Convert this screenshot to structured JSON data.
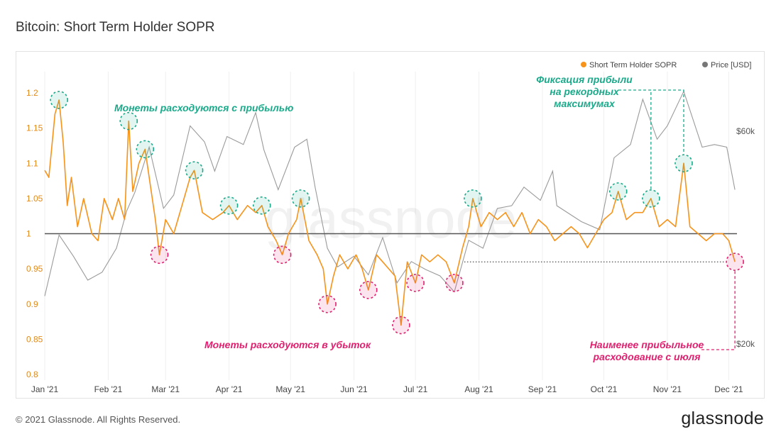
{
  "title": "Bitcoin: Short Term Holder SOPR",
  "footer": "© 2021 Glassnode. All Rights Reserved.",
  "brand": "glassnode",
  "watermark": "glassnode",
  "colors": {
    "sopr": "#f7931a",
    "price": "#9a9a9a",
    "baseline": "#555555",
    "profit": "#1aaa8a",
    "loss": "#e0206e"
  },
  "chart_data": {
    "type": "line",
    "xlabels": [
      "Jan '21",
      "Feb '21",
      "Mar '21",
      "Apr '21",
      "May '21",
      "Jun '21",
      "Jul '21",
      "Aug '21",
      "Sep '21",
      "Oct '21",
      "Nov '21",
      "Dec '21"
    ],
    "x_range": [
      "2021-01-01",
      "2021-12-05"
    ],
    "y_ticks": [
      "1.2",
      "1.15",
      "1.1",
      "1.05",
      "1",
      "0.95",
      "0.9",
      "0.85",
      "0.8"
    ],
    "ylim": [
      0.8,
      1.2
    ],
    "price_ticks": [
      "$60k",
      "$20k"
    ],
    "legend": [
      "Short Term Holder SOPR",
      "Price [USD]"
    ],
    "legend_position": "top-right",
    "baseline": 1.0,
    "series": [
      {
        "name": "Short Term Holder SOPR",
        "axis": "left",
        "points": [
          [
            "2021-01-01",
            1.09
          ],
          [
            "2021-01-03",
            1.08
          ],
          [
            "2021-01-06",
            1.17
          ],
          [
            "2021-01-08",
            1.19
          ],
          [
            "2021-01-10",
            1.13
          ],
          [
            "2021-01-12",
            1.04
          ],
          [
            "2021-01-14",
            1.08
          ],
          [
            "2021-01-17",
            1.01
          ],
          [
            "2021-01-20",
            1.05
          ],
          [
            "2021-01-24",
            1.0
          ],
          [
            "2021-01-27",
            0.99
          ],
          [
            "2021-01-30",
            1.05
          ],
          [
            "2021-02-03",
            1.02
          ],
          [
            "2021-02-06",
            1.05
          ],
          [
            "2021-02-09",
            1.02
          ],
          [
            "2021-02-11",
            1.16
          ],
          [
            "2021-02-13",
            1.06
          ],
          [
            "2021-02-16",
            1.1
          ],
          [
            "2021-02-19",
            1.12
          ],
          [
            "2021-02-22",
            1.06
          ],
          [
            "2021-02-24",
            1.02
          ],
          [
            "2021-02-26",
            0.97
          ],
          [
            "2021-03-01",
            1.02
          ],
          [
            "2021-03-05",
            1.0
          ],
          [
            "2021-03-09",
            1.04
          ],
          [
            "2021-03-13",
            1.08
          ],
          [
            "2021-03-15",
            1.09
          ],
          [
            "2021-03-19",
            1.03
          ],
          [
            "2021-03-24",
            1.02
          ],
          [
            "2021-03-29",
            1.03
          ],
          [
            "2021-04-01",
            1.04
          ],
          [
            "2021-04-05",
            1.02
          ],
          [
            "2021-04-10",
            1.04
          ],
          [
            "2021-04-14",
            1.03
          ],
          [
            "2021-04-17",
            1.04
          ],
          [
            "2021-04-20",
            1.01
          ],
          [
            "2021-04-24",
            0.99
          ],
          [
            "2021-04-27",
            0.97
          ],
          [
            "2021-04-30",
            1.0
          ],
          [
            "2021-05-04",
            1.02
          ],
          [
            "2021-05-06",
            1.05
          ],
          [
            "2021-05-10",
            0.99
          ],
          [
            "2021-05-14",
            0.97
          ],
          [
            "2021-05-17",
            0.95
          ],
          [
            "2021-05-19",
            0.9
          ],
          [
            "2021-05-22",
            0.94
          ],
          [
            "2021-05-25",
            0.97
          ],
          [
            "2021-05-29",
            0.95
          ],
          [
            "2021-06-02",
            0.97
          ],
          [
            "2021-06-05",
            0.95
          ],
          [
            "2021-06-08",
            0.92
          ],
          [
            "2021-06-12",
            0.97
          ],
          [
            "2021-06-15",
            0.96
          ],
          [
            "2021-06-18",
            0.95
          ],
          [
            "2021-06-21",
            0.94
          ],
          [
            "2021-06-24",
            0.87
          ],
          [
            "2021-06-27",
            0.96
          ],
          [
            "2021-07-01",
            0.93
          ],
          [
            "2021-07-04",
            0.97
          ],
          [
            "2021-07-08",
            0.96
          ],
          [
            "2021-07-12",
            0.97
          ],
          [
            "2021-07-16",
            0.96
          ],
          [
            "2021-07-20",
            0.93
          ],
          [
            "2021-07-24",
            0.98
          ],
          [
            "2021-07-27",
            1.01
          ],
          [
            "2021-07-29",
            1.05
          ],
          [
            "2021-08-02",
            1.01
          ],
          [
            "2021-08-06",
            1.03
          ],
          [
            "2021-08-10",
            1.02
          ],
          [
            "2021-08-14",
            1.03
          ],
          [
            "2021-08-18",
            1.01
          ],
          [
            "2021-08-22",
            1.03
          ],
          [
            "2021-08-26",
            1.0
          ],
          [
            "2021-08-30",
            1.02
          ],
          [
            "2021-09-03",
            1.01
          ],
          [
            "2021-09-07",
            0.99
          ],
          [
            "2021-09-11",
            1.0
          ],
          [
            "2021-09-15",
            1.01
          ],
          [
            "2021-09-19",
            1.0
          ],
          [
            "2021-09-23",
            0.98
          ],
          [
            "2021-09-27",
            1.0
          ],
          [
            "2021-10-01",
            1.02
          ],
          [
            "2021-10-05",
            1.03
          ],
          [
            "2021-10-08",
            1.06
          ],
          [
            "2021-10-12",
            1.02
          ],
          [
            "2021-10-16",
            1.03
          ],
          [
            "2021-10-20",
            1.03
          ],
          [
            "2021-10-24",
            1.05
          ],
          [
            "2021-10-28",
            1.01
          ],
          [
            "2021-11-01",
            1.02
          ],
          [
            "2021-11-05",
            1.01
          ],
          [
            "2021-11-09",
            1.1
          ],
          [
            "2021-11-12",
            1.01
          ],
          [
            "2021-11-16",
            1.0
          ],
          [
            "2021-11-20",
            0.99
          ],
          [
            "2021-11-24",
            1.0
          ],
          [
            "2021-11-28",
            1.0
          ],
          [
            "2021-12-01",
            0.99
          ],
          [
            "2021-12-04",
            0.96
          ]
        ]
      },
      {
        "name": "Price [USD]",
        "axis": "right",
        "range": [
          20000,
          60000
        ],
        "points": [
          [
            "2021-01-01",
            29000
          ],
          [
            "2021-01-08",
            40500
          ],
          [
            "2021-01-15",
            36500
          ],
          [
            "2021-01-22",
            32000
          ],
          [
            "2021-01-29",
            33500
          ],
          [
            "2021-02-05",
            38000
          ],
          [
            "2021-02-10",
            45000
          ],
          [
            "2021-02-14",
            48500
          ],
          [
            "2021-02-21",
            57000
          ],
          [
            "2021-02-28",
            45500
          ],
          [
            "2021-03-05",
            48000
          ],
          [
            "2021-03-13",
            61000
          ],
          [
            "2021-03-20",
            58000
          ],
          [
            "2021-03-25",
            52500
          ],
          [
            "2021-03-31",
            59000
          ],
          [
            "2021-04-08",
            57500
          ],
          [
            "2021-04-14",
            63500
          ],
          [
            "2021-04-18",
            56500
          ],
          [
            "2021-04-25",
            49000
          ],
          [
            "2021-05-03",
            57000
          ],
          [
            "2021-05-09",
            58500
          ],
          [
            "2021-05-13",
            49500
          ],
          [
            "2021-05-19",
            38000
          ],
          [
            "2021-05-24",
            34500
          ],
          [
            "2021-06-01",
            36500
          ],
          [
            "2021-06-08",
            33000
          ],
          [
            "2021-06-15",
            40000
          ],
          [
            "2021-06-22",
            31500
          ],
          [
            "2021-06-29",
            35500
          ],
          [
            "2021-07-06",
            34000
          ],
          [
            "2021-07-13",
            32800
          ],
          [
            "2021-07-20",
            29800
          ],
          [
            "2021-07-27",
            39500
          ],
          [
            "2021-08-03",
            38000
          ],
          [
            "2021-08-10",
            45500
          ],
          [
            "2021-08-17",
            46000
          ],
          [
            "2021-08-23",
            49500
          ],
          [
            "2021-08-31",
            47000
          ],
          [
            "2021-09-06",
            52500
          ],
          [
            "2021-09-08",
            46000
          ],
          [
            "2021-09-20",
            43000
          ],
          [
            "2021-09-29",
            41500
          ],
          [
            "2021-10-06",
            55000
          ],
          [
            "2021-10-14",
            57500
          ],
          [
            "2021-10-20",
            66000
          ],
          [
            "2021-10-27",
            58500
          ],
          [
            "2021-11-01",
            61000
          ],
          [
            "2021-11-09",
            67500
          ],
          [
            "2021-11-18",
            57000
          ],
          [
            "2021-11-24",
            57500
          ],
          [
            "2021-11-30",
            57000
          ],
          [
            "2021-12-04",
            49000
          ]
        ]
      }
    ],
    "annotations": {
      "profit": "Монеты расходуются с прибылью",
      "loss": "Монеты расходуются в убыток",
      "ath": [
        "Фиксация прибыли",
        "на рекордных",
        "максимумах"
      ],
      "least": [
        "Наименее прибыльное",
        "расходование с июля"
      ]
    },
    "profit_markers": [
      "2021-01-08",
      "2021-02-11",
      "2021-02-19",
      "2021-03-15",
      "2021-04-01",
      "2021-04-17",
      "2021-05-06",
      "2021-07-29",
      "2021-10-08",
      "2021-10-24",
      "2021-11-09"
    ],
    "loss_markers": [
      "2021-02-26",
      "2021-04-27",
      "2021-05-19",
      "2021-06-08",
      "2021-06-24",
      "2021-07-01",
      "2021-07-20",
      "2021-12-04"
    ]
  }
}
